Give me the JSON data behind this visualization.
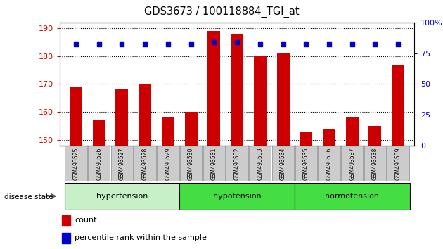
{
  "title": "GDS3673 / 100118884_TGI_at",
  "categories": [
    "GSM493525",
    "GSM493526",
    "GSM493527",
    "GSM493528",
    "GSM493529",
    "GSM493530",
    "GSM493531",
    "GSM493532",
    "GSM493533",
    "GSM493534",
    "GSM493535",
    "GSM493536",
    "GSM493537",
    "GSM493538",
    "GSM493539"
  ],
  "count_values": [
    169,
    157,
    168,
    170,
    158,
    160,
    189,
    188,
    180,
    181,
    153,
    154,
    158,
    155,
    177
  ],
  "percentile_values": [
    82,
    82,
    82,
    82,
    82,
    82,
    84,
    84,
    82,
    82,
    82,
    82,
    82,
    82,
    82
  ],
  "ylim_left": [
    148,
    192
  ],
  "yticks_left": [
    150,
    160,
    170,
    180,
    190
  ],
  "ylim_right": [
    0,
    100
  ],
  "yticks_right": [
    0,
    25,
    50,
    75,
    100
  ],
  "bar_color": "#cc0000",
  "dot_color": "#0000cc",
  "groups": [
    {
      "label": "hypertension",
      "start": 0,
      "end": 5,
      "color": "#c8f0c8"
    },
    {
      "label": "hypotension",
      "start": 5,
      "end": 10,
      "color": "#44dd44"
    },
    {
      "label": "normotension",
      "start": 10,
      "end": 15,
      "color": "#44dd44"
    }
  ],
  "group_label": "disease state",
  "legend_items": [
    {
      "color": "#cc0000",
      "label": "count"
    },
    {
      "color": "#0000cc",
      "label": "percentile rank within the sample"
    }
  ],
  "tick_bg_color": "#cccccc",
  "right_ytick_labels": [
    "0",
    "25",
    "50",
    "75",
    "100%"
  ]
}
